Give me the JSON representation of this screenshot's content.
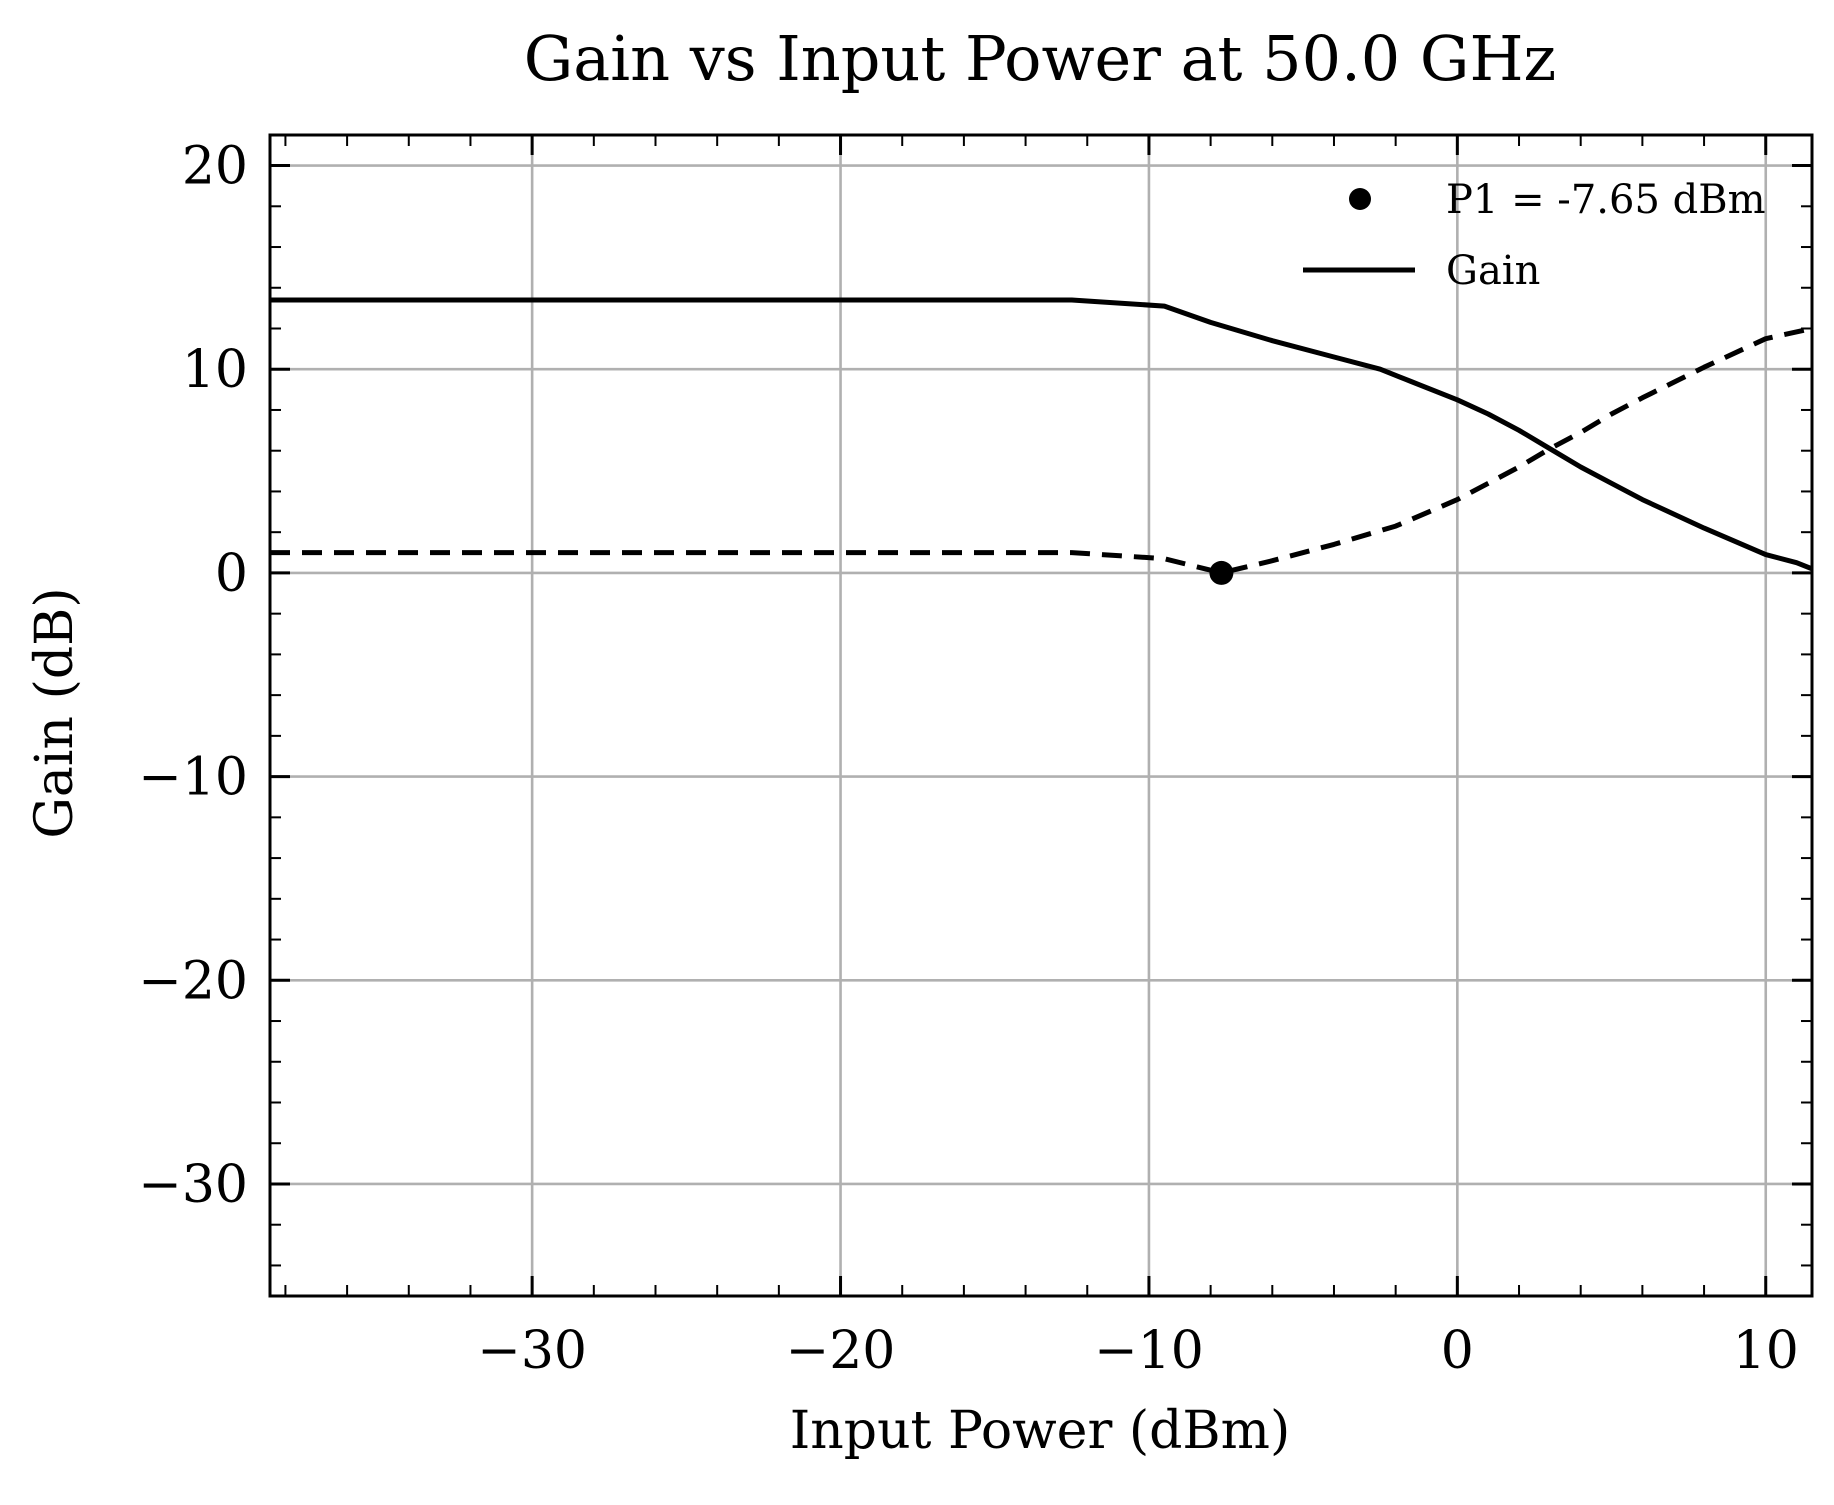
{
  "chart_data": {
    "type": "line",
    "title": "Gain vs Input Power at 50.0 GHz",
    "xlabel": "Input Power (dBm)",
    "ylabel": "Gain (dB)",
    "xlim": [
      -38.5,
      11.5
    ],
    "ylim": [
      -35.5,
      21.5
    ],
    "x_major_ticks": [
      -30,
      -20,
      -10,
      0,
      10
    ],
    "x_tick_labels": [
      "−30",
      "−20",
      "−10",
      "0",
      "10"
    ],
    "x_minor_step": 2,
    "y_major_ticks": [
      -30,
      -20,
      -10,
      0,
      10,
      20
    ],
    "y_tick_labels": [
      "−30",
      "−20",
      "−10",
      "0",
      "10",
      "20"
    ],
    "y_minor_step": 2,
    "grid": true,
    "legend_position": "top-right",
    "legend": [
      {
        "label": "P1 = -7.65 dBm",
        "marker": "circle"
      },
      {
        "label": "Gain",
        "marker": "line"
      }
    ],
    "series": [
      {
        "name": "Gain",
        "style": "solid",
        "color": "#000000",
        "x": [
          -38.5,
          -30,
          -20,
          -12.5,
          -9.5,
          -8,
          -6,
          -4,
          -2.5,
          -1.5,
          0,
          1,
          2,
          3,
          4,
          5,
          6,
          8,
          10,
          11,
          11.5
        ],
        "y": [
          13.4,
          13.4,
          13.4,
          13.4,
          13.1,
          12.3,
          11.4,
          10.6,
          10.0,
          9.4,
          8.5,
          7.8,
          7.0,
          6.1,
          5.2,
          4.4,
          3.6,
          2.2,
          0.9,
          0.5,
          0.2
        ]
      },
      {
        "name": "",
        "style": "dashed",
        "color": "#000000",
        "x": [
          -38.5,
          -30,
          -20,
          -12.5,
          -9.5,
          -7.65,
          -6,
          -4,
          -2,
          0,
          1,
          2,
          3,
          4,
          5,
          6,
          8,
          10,
          11.5
        ],
        "y": [
          1.0,
          1.0,
          1.0,
          1.0,
          0.7,
          0.0,
          0.6,
          1.4,
          2.3,
          3.6,
          4.4,
          5.2,
          6.1,
          6.9,
          7.8,
          8.6,
          10.1,
          11.5,
          12.0
        ]
      }
    ],
    "points": [
      {
        "name": "P1 = -7.65 dBm",
        "x": -7.65,
        "y": 0.0
      }
    ]
  }
}
